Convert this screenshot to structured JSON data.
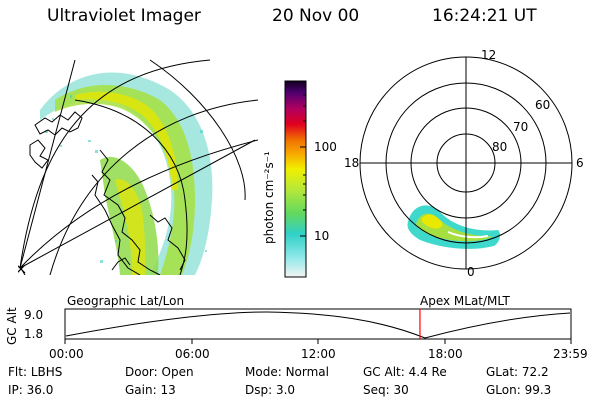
{
  "header": {
    "instrument": "Ultraviolet Imager",
    "date": "20 Nov 00",
    "time": "16:24:21 UT"
  },
  "colorbar": {
    "unit_label": "photon cm⁻²s⁻¹",
    "ticks": [
      "100",
      "10"
    ]
  },
  "polar_plot": {
    "mlt_labels": [
      "12",
      "18",
      "6",
      "0"
    ],
    "lat_labels": [
      "60",
      "70",
      "80"
    ]
  },
  "timeline": {
    "left_caption": "Geographic Lat/Lon",
    "right_caption": "Apex MLat/MLT",
    "axis_label": "GC Alt",
    "y_ticks": [
      "9.0",
      "1.8"
    ],
    "x_ticks": [
      "00:00",
      "06:00",
      "12:00",
      "18:00",
      "23:59"
    ],
    "current_time_fraction": 0.7015
  },
  "status": {
    "row1": [
      {
        "label": "Flt:",
        "value": "LBHS"
      },
      {
        "label": "Door:",
        "value": "Open"
      },
      {
        "label": "Mode:",
        "value": "Normal"
      },
      {
        "label": "GC Alt:",
        "value": "4.4 Re"
      },
      {
        "label": "GLat:",
        "value": "72.2"
      }
    ],
    "row2": [
      {
        "label": "IP:",
        "value": "36.0"
      },
      {
        "label": "Gain:",
        "value": "13"
      },
      {
        "label": "Dsp:",
        "value": "3.0"
      },
      {
        "label": "Seq:",
        "value": "30"
      },
      {
        "label": "GLon:",
        "value": "99.3"
      }
    ]
  },
  "colors": {
    "marker": "#ff0000",
    "aurora_low": "#3fd9d0",
    "aurora_mid": "#a8e040",
    "aurora_high": "#f2e600"
  }
}
